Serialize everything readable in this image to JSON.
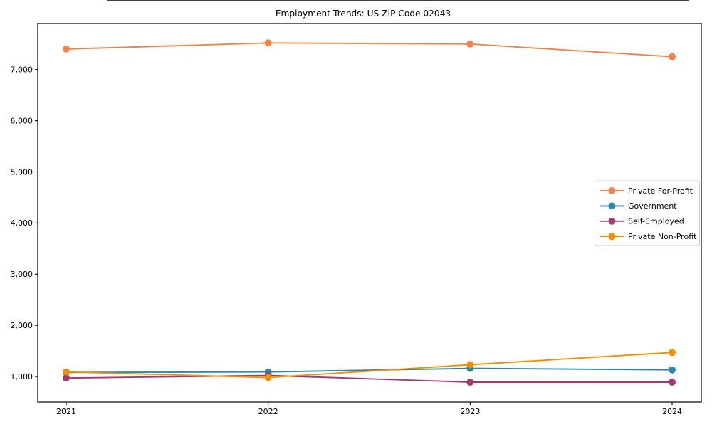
{
  "title": "Employment Trends: US ZIP Code 02043",
  "chart_data": {
    "type": "line",
    "title": "Employment Trends: US ZIP Code 02043",
    "xlabel": "",
    "ylabel": "",
    "x": [
      2021,
      2022,
      2023,
      2024
    ],
    "xtick_labels": [
      "2021",
      "2022",
      "2023",
      "2024"
    ],
    "yticks": [
      1000,
      2000,
      3000,
      4000,
      5000,
      6000,
      7000
    ],
    "ytick_labels": [
      "1,000",
      "2,000",
      "3,000",
      "4,000",
      "5,000",
      "6,000",
      "7,000"
    ],
    "ylim": [
      500,
      7900
    ],
    "grid": false,
    "marker": "circle",
    "legend_position": "center right",
    "series": [
      {
        "name": "Private For-Profit",
        "color": "#EE854A",
        "values": [
          7400,
          7520,
          7500,
          7250
        ]
      },
      {
        "name": "Government",
        "color": "#2E86AB",
        "values": [
          1080,
          1090,
          1160,
          1130
        ]
      },
      {
        "name": "Self-Employed",
        "color": "#A23B72",
        "values": [
          970,
          1020,
          890,
          890
        ]
      },
      {
        "name": "Private Non-Profit",
        "color": "#F18F01",
        "values": [
          1090,
          980,
          1230,
          1470
        ]
      }
    ]
  }
}
